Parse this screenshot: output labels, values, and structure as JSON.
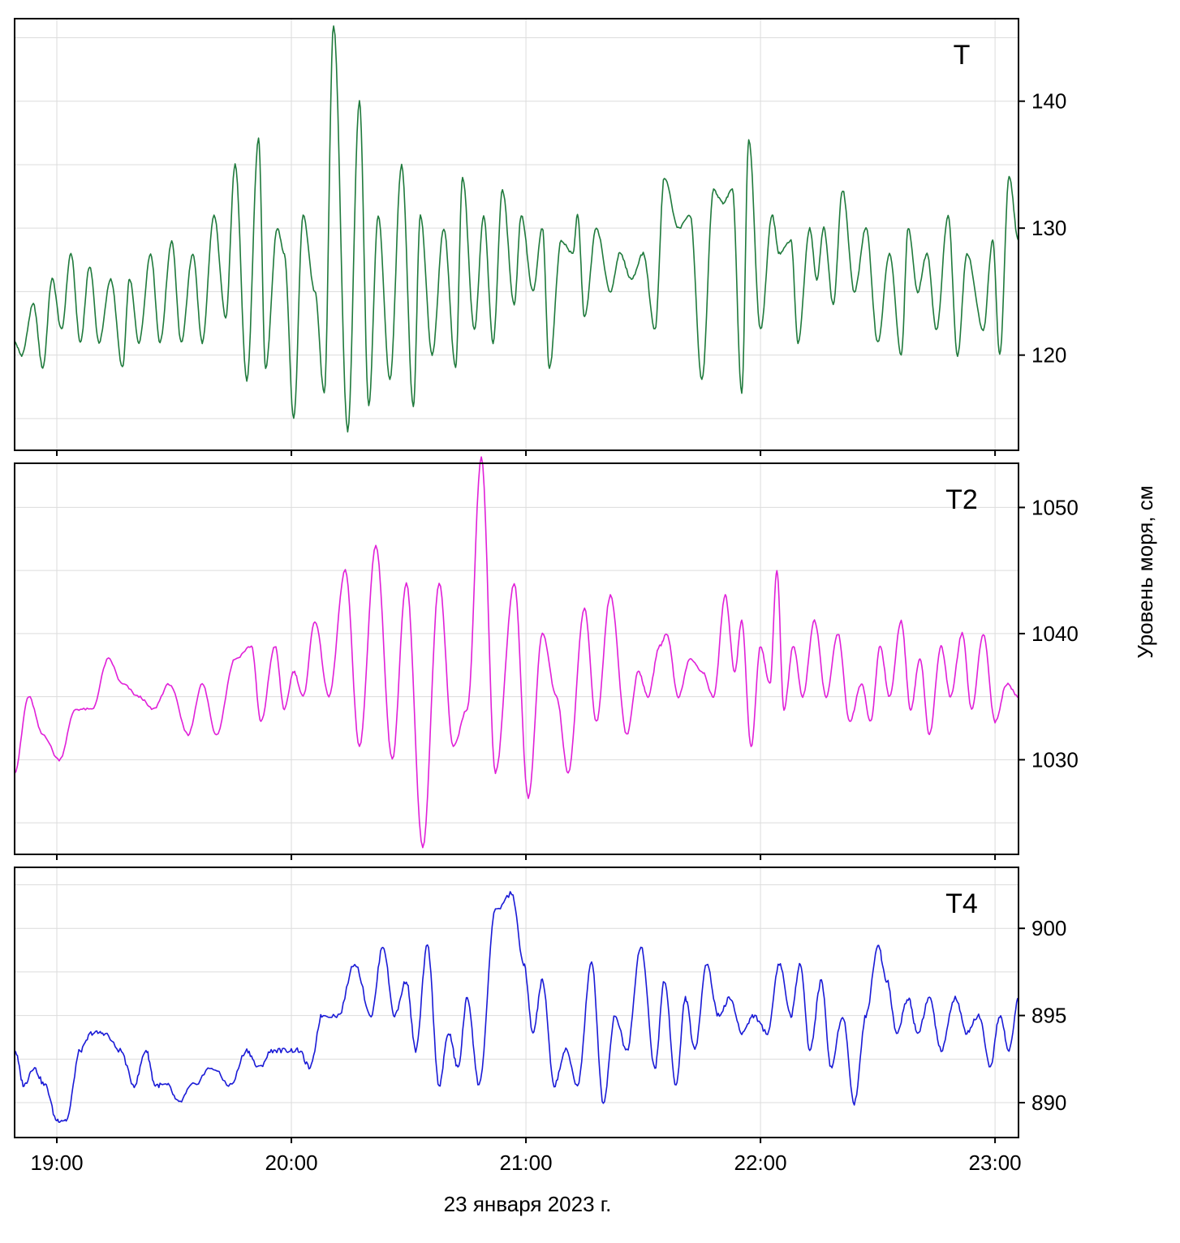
{
  "chart_data": {
    "type": "line",
    "title": "",
    "xlabel": "23 января 2023 г.",
    "ylabel": "Уровень моря, см",
    "x_tick_labels": [
      "19:00",
      "20:00",
      "21:00",
      "22:00",
      "23:00"
    ],
    "x_ticks_hours": [
      19,
      20,
      21,
      22,
      23
    ],
    "xlim_hours": [
      18.82,
      23.1
    ],
    "grid": true,
    "panels": [
      {
        "label": "T",
        "color": "#1f7a3c",
        "ylim": [
          112.5,
          146.5
        ],
        "y_ticks": [
          120,
          130,
          140
        ],
        "y_tick_labels": [
          "120",
          "130",
          "140"
        ],
        "series": [
          {
            "x": [
              18.82,
              18.85,
              18.9,
              18.94,
              18.98,
              19.02,
              19.06,
              19.1,
              19.14,
              19.18,
              19.23,
              19.28,
              19.31,
              19.35,
              19.4,
              19.44,
              19.49,
              19.53,
              19.58,
              19.62,
              19.67,
              19.72,
              19.76,
              19.81,
              19.86,
              19.89,
              19.94,
              19.97,
              20.01,
              20.05,
              20.1,
              20.14,
              20.18,
              20.24,
              20.29,
              20.33,
              20.37,
              20.42,
              20.47,
              20.52,
              20.55,
              20.6,
              20.65,
              20.7,
              20.73,
              20.78,
              20.82,
              20.86,
              20.9,
              20.95,
              20.98,
              21.03,
              21.07,
              21.1,
              21.15,
              21.2,
              21.22,
              21.25,
              21.3,
              21.36,
              21.4,
              21.45,
              21.5,
              21.55,
              21.59,
              21.65,
              21.7,
              21.75,
              21.8,
              21.84,
              21.88,
              21.92,
              21.95,
              22.0,
              22.05,
              22.08,
              22.13,
              22.16,
              22.21,
              22.24,
              22.27,
              22.31,
              22.35,
              22.4,
              22.45,
              22.5,
              22.55,
              22.6,
              22.63,
              22.67,
              22.71,
              22.75,
              22.8,
              22.84,
              22.88,
              22.95,
              22.99,
              23.02,
              23.06,
              23.1
            ],
            "y": [
              121,
              120,
              124,
              119,
              126,
              122,
              128,
              121,
              127,
              121,
              126,
              119,
              126,
              121,
              128,
              121,
              129,
              121,
              128,
              121,
              131,
              123,
              135,
              118,
              137,
              119,
              130,
              128,
              115,
              131,
              125,
              117,
              146,
              114,
              140,
              116,
              131,
              118,
              135,
              116,
              131,
              120,
              130,
              119,
              134,
              122,
              131,
              121,
              133,
              124,
              131,
              125,
              130,
              119,
              129,
              128,
              131,
              123,
              130,
              125,
              128,
              126,
              128,
              122,
              134,
              130,
              131,
              118,
              133,
              132,
              133,
              117,
              137,
              122,
              131,
              128,
              129,
              121,
              130,
              126,
              130,
              124,
              133,
              125,
              130,
              121,
              128,
              120,
              130,
              125,
              128,
              122,
              131,
              120,
              128,
              122,
              129,
              120,
              134,
              129
            ]
          }
        ]
      },
      {
        "label": "T2",
        "color": "#e020d8",
        "ylim": [
          1022.5,
          1053.5
        ],
        "y_ticks": [
          1030,
          1040,
          1050
        ],
        "y_tick_labels": [
          "1030",
          "1040",
          "1050"
        ],
        "series": [
          {
            "x": [
              18.82,
              18.88,
              18.94,
              19.01,
              19.08,
              19.15,
              19.22,
              19.28,
              19.35,
              19.41,
              19.48,
              19.56,
              19.62,
              19.68,
              19.76,
              19.83,
              19.87,
              19.93,
              19.97,
              20.01,
              20.05,
              20.1,
              20.16,
              20.23,
              20.29,
              20.36,
              20.43,
              20.49,
              20.56,
              20.63,
              20.69,
              20.75,
              20.81,
              20.87,
              20.95,
              21.01,
              21.07,
              21.13,
              21.18,
              21.25,
              21.3,
              21.36,
              21.43,
              21.48,
              21.52,
              21.57,
              21.6,
              21.65,
              21.7,
              21.75,
              21.8,
              21.85,
              21.89,
              21.92,
              21.96,
              22.0,
              22.04,
              22.07,
              22.1,
              22.14,
              22.18,
              22.23,
              22.28,
              22.33,
              22.38,
              22.43,
              22.47,
              22.51,
              22.55,
              22.6,
              22.64,
              22.68,
              22.72,
              22.77,
              22.81,
              22.86,
              22.9,
              22.95,
              23.0,
              23.05,
              23.1
            ],
            "y": [
              1029,
              1035,
              1032,
              1030,
              1034,
              1034,
              1038,
              1036,
              1035,
              1034,
              1036,
              1032,
              1036,
              1032,
              1038,
              1039,
              1033,
              1039,
              1034,
              1037,
              1035,
              1041,
              1035,
              1045,
              1031,
              1047,
              1030,
              1044,
              1023,
              1044,
              1031,
              1034,
              1054,
              1029,
              1044,
              1027,
              1040,
              1035,
              1029,
              1042,
              1033,
              1043,
              1032,
              1037,
              1035,
              1039,
              1040,
              1035,
              1038,
              1037,
              1035,
              1043,
              1037,
              1041,
              1031,
              1039,
              1036,
              1045,
              1034,
              1039,
              1035,
              1041,
              1035,
              1040,
              1033,
              1036,
              1033,
              1039,
              1035,
              1041,
              1034,
              1038,
              1032,
              1039,
              1035,
              1040,
              1034,
              1040,
              1033,
              1036,
              1035
            ],
            "_unused": null
          }
        ]
      },
      {
        "label": "T4",
        "color": "#1a1ad6",
        "ylim": [
          888,
          903.5
        ],
        "y_ticks": [
          890,
          895,
          900
        ],
        "y_tick_labels": [
          "890",
          "895",
          "900"
        ],
        "series": [
          {
            "x": [
              18.82,
              18.86,
              18.9,
              18.95,
              19.0,
              19.04,
              19.1,
              19.15,
              19.2,
              19.27,
              19.33,
              19.38,
              19.42,
              19.47,
              19.52,
              19.58,
              19.66,
              19.74,
              19.81,
              19.86,
              19.92,
              19.98,
              20.03,
              20.08,
              20.13,
              20.2,
              20.27,
              20.34,
              20.39,
              20.44,
              20.49,
              20.53,
              20.58,
              20.63,
              20.67,
              20.71,
              20.75,
              20.8,
              20.87,
              20.94,
              20.99,
              21.03,
              21.07,
              21.12,
              21.17,
              21.22,
              21.28,
              21.33,
              21.38,
              21.43,
              21.49,
              21.55,
              21.59,
              21.64,
              21.68,
              21.72,
              21.77,
              21.82,
              21.87,
              21.92,
              21.97,
              22.03,
              22.08,
              22.13,
              22.17,
              22.21,
              22.26,
              22.3,
              22.35,
              22.4,
              22.45,
              22.5,
              22.54,
              22.58,
              22.63,
              22.67,
              22.72,
              22.77,
              22.83,
              22.88,
              22.93,
              22.98,
              23.02,
              23.06,
              23.1
            ],
            "y": [
              893,
              891,
              892,
              891,
              889,
              889,
              893,
              894,
              894,
              893,
              891,
              893,
              891,
              891,
              890,
              891,
              892,
              891,
              893,
              892,
              893,
              893,
              893,
              892,
              895,
              895,
              898,
              895,
              899,
              895,
              897,
              893,
              899,
              891,
              894,
              892,
              896,
              891,
              901,
              902,
              898,
              894,
              897,
              891,
              893,
              891,
              898,
              890,
              895,
              893,
              899,
              892,
              897,
              891,
              896,
              893,
              898,
              895,
              896,
              894,
              895,
              894,
              898,
              895,
              898,
              893,
              897,
              892,
              895,
              890,
              895,
              899,
              897,
              894,
              896,
              894,
              896,
              893,
              896,
              894,
              895,
              892,
              895,
              893,
              896
            ]
          }
        ]
      }
    ]
  }
}
